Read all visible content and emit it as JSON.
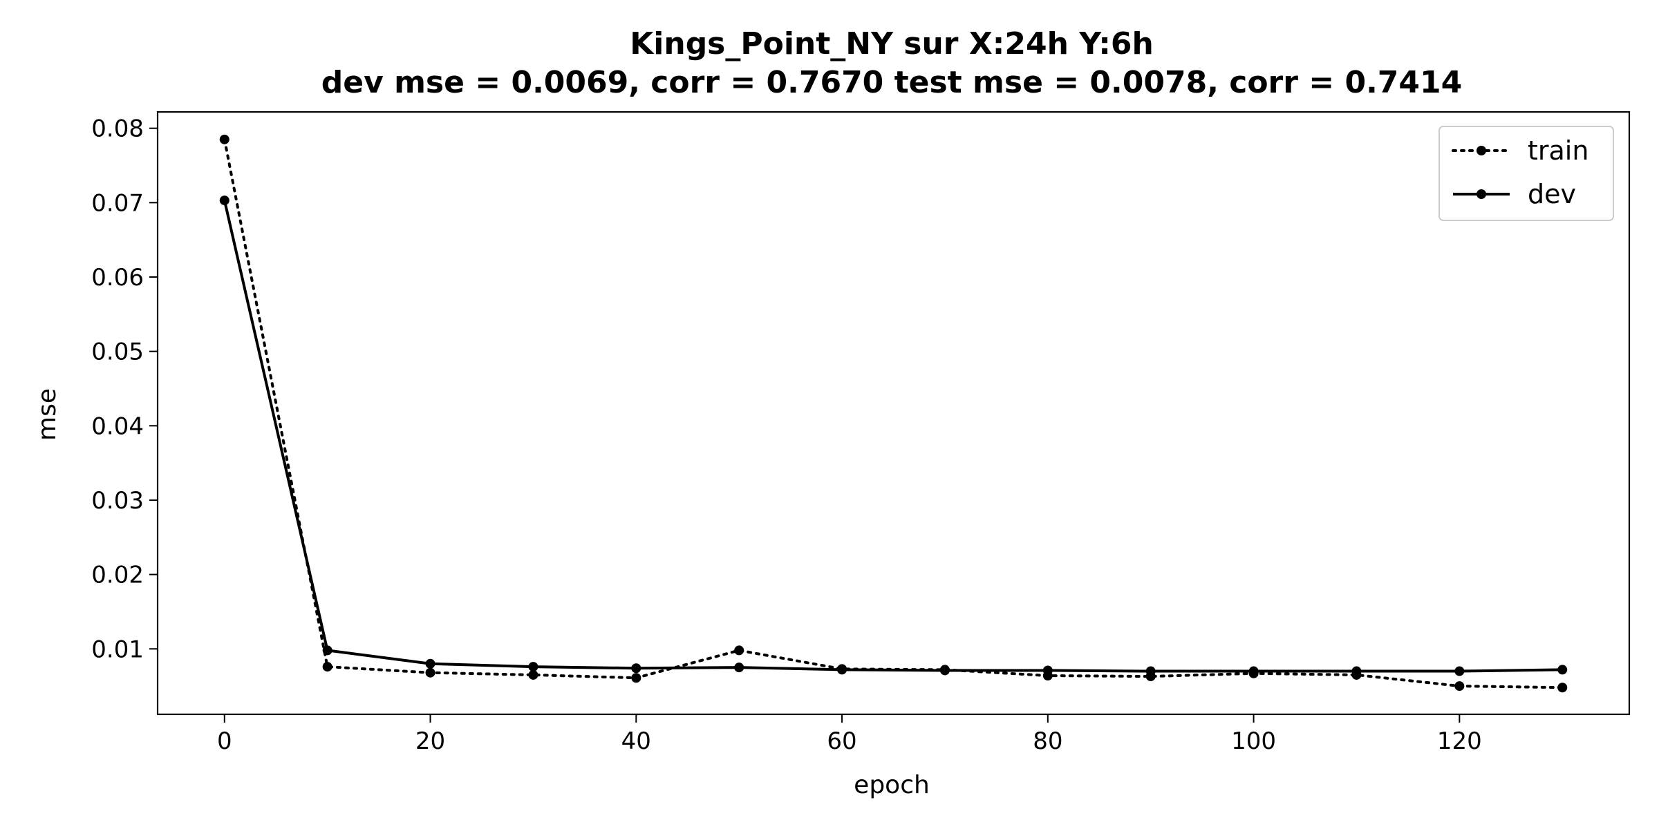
{
  "chart_data": {
    "type": "line",
    "title": "Kings_Point_NY   sur   X:24h   Y:6h",
    "subtitle": "dev mse = 0.0069, corr = 0.7670   test mse = 0.0078, corr = 0.7414",
    "xlabel": "epoch",
    "ylabel": "mse",
    "xlim": [
      -6.5,
      136.5
    ],
    "ylim": [
      0.0012,
      0.0822
    ],
    "xticks": [
      0,
      20,
      40,
      60,
      80,
      100,
      120
    ],
    "xtick_labels": [
      "0",
      "20",
      "40",
      "60",
      "80",
      "100",
      "120"
    ],
    "yticks": [
      0.01,
      0.02,
      0.03,
      0.04,
      0.05,
      0.06,
      0.07,
      0.08
    ],
    "ytick_labels": [
      "0.01",
      "0.02",
      "0.03",
      "0.04",
      "0.05",
      "0.06",
      "0.07",
      "0.08"
    ],
    "grid": false,
    "legend_position": "top-right",
    "x": [
      0,
      10,
      20,
      30,
      40,
      50,
      60,
      70,
      80,
      90,
      100,
      110,
      120,
      130
    ],
    "series": [
      {
        "name": "train",
        "style": "dotted",
        "color": "#000000",
        "values": [
          0.0785,
          0.0076,
          0.0068,
          0.0065,
          0.0061,
          0.0098,
          0.0073,
          0.0072,
          0.0064,
          0.0063,
          0.0067,
          0.0065,
          0.005,
          0.0048
        ]
      },
      {
        "name": "dev",
        "style": "solid",
        "color": "#000000",
        "values": [
          0.0703,
          0.0098,
          0.008,
          0.0076,
          0.0074,
          0.0075,
          0.0072,
          0.0071,
          0.0071,
          0.007,
          0.007,
          0.007,
          0.007,
          0.0072
        ]
      }
    ]
  }
}
